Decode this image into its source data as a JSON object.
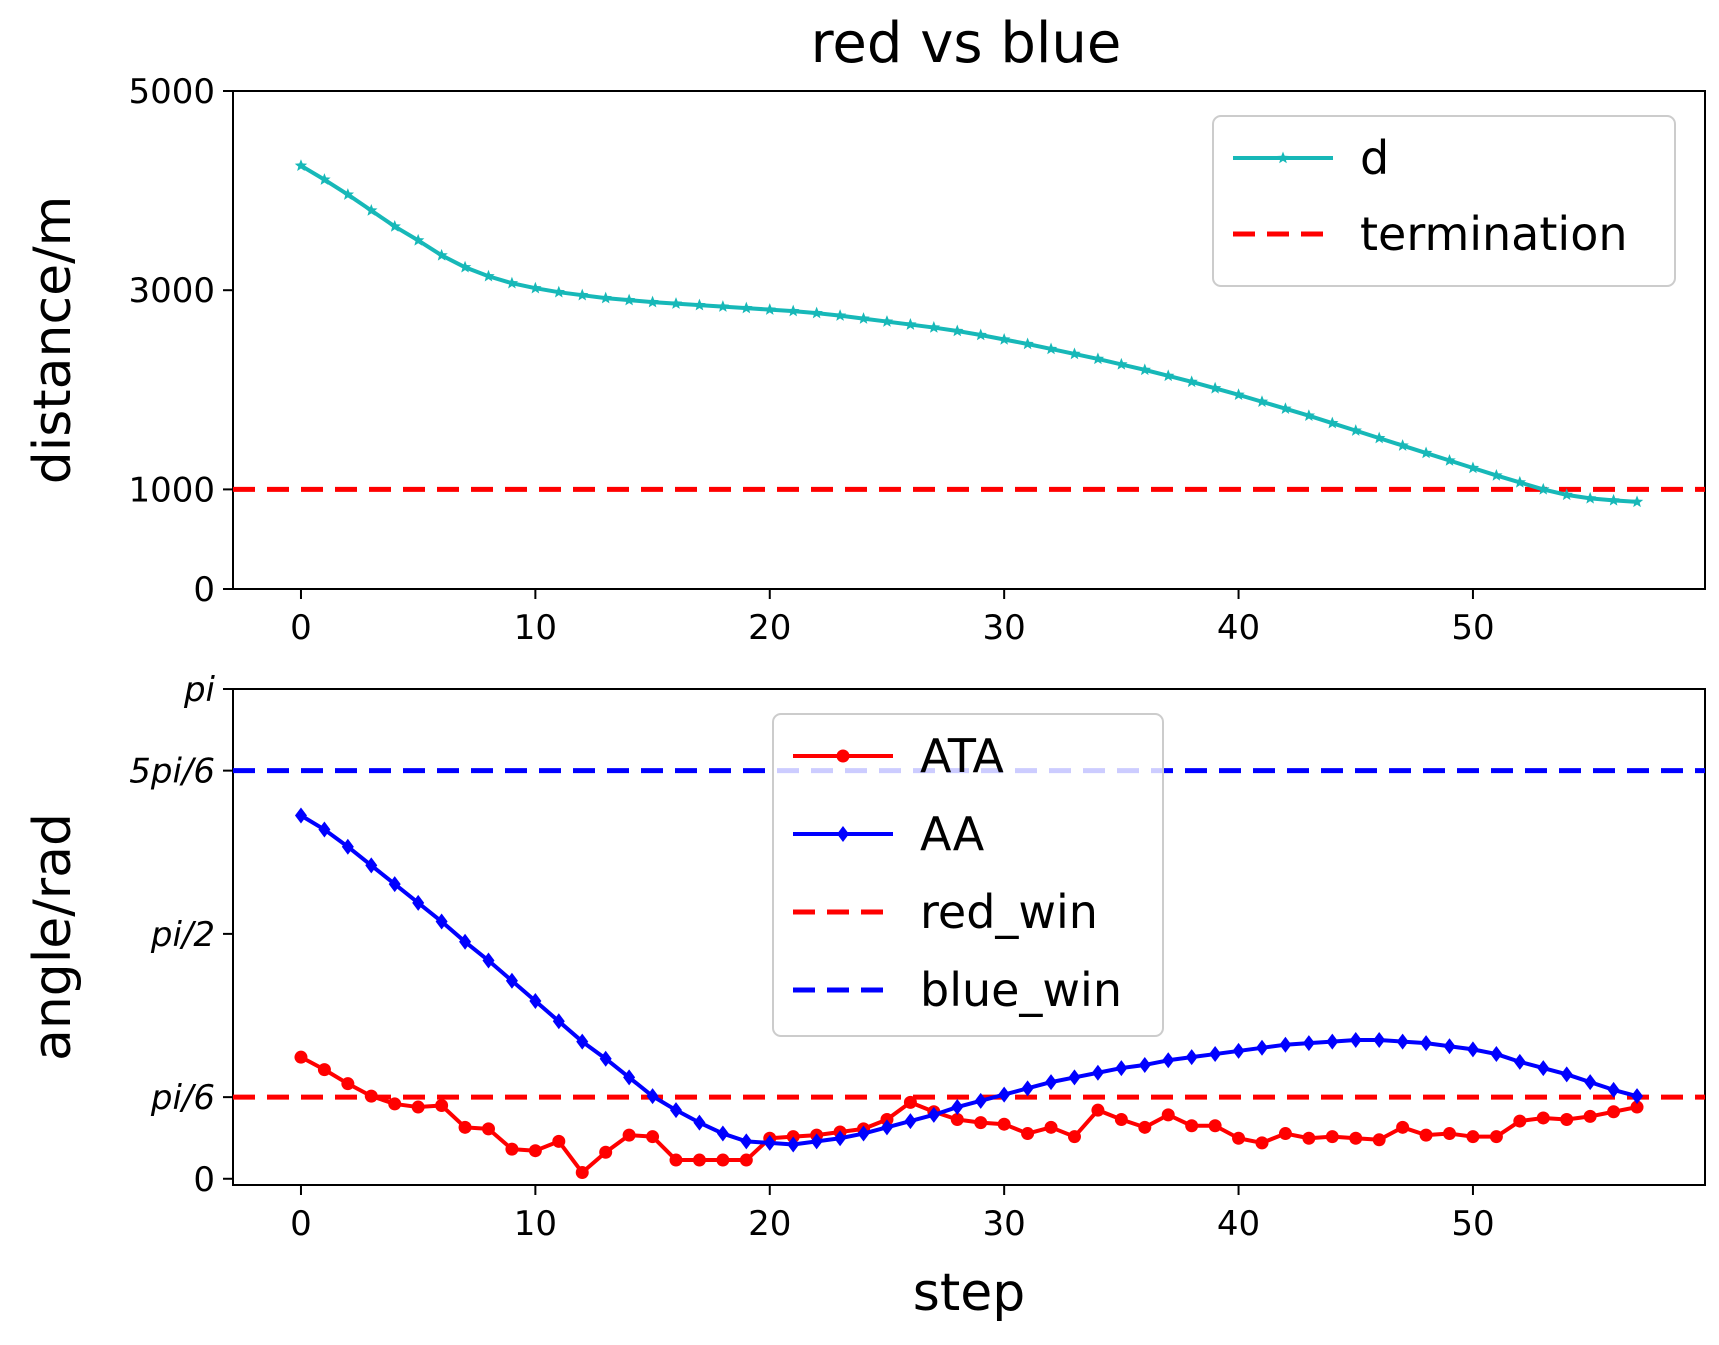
{
  "title": "red vs blue",
  "colors": {
    "d": "#17b8b8",
    "termination": "#ff0000",
    "ata": "#ff0000",
    "aa": "#0000ff",
    "red_win": "#ff0000",
    "blue_win": "#0000ff"
  },
  "chart_data": [
    {
      "type": "line",
      "title": "red vs blue",
      "xlabel": "",
      "ylabel": "distance/m",
      "xlim": [
        -2.9,
        59.9
      ],
      "ylim": [
        0,
        5000
      ],
      "xticks": [
        0,
        10,
        20,
        30,
        40,
        50
      ],
      "xtick_labels": [
        "0",
        "10",
        "20",
        "30",
        "40",
        "50"
      ],
      "yticks": [
        0,
        1000,
        3000,
        5000
      ],
      "ytick_labels": [
        "0",
        "1000",
        "3000",
        "5000"
      ],
      "grid": false,
      "legend_position": "upper right",
      "series": [
        {
          "name": "d",
          "color": "#17b8b8",
          "marker": "star",
          "x": [
            0,
            1,
            2,
            3,
            4,
            5,
            6,
            7,
            8,
            9,
            10,
            11,
            12,
            13,
            14,
            15,
            16,
            17,
            18,
            19,
            20,
            21,
            22,
            23,
            24,
            25,
            26,
            27,
            28,
            29,
            30,
            31,
            32,
            33,
            34,
            35,
            36,
            37,
            38,
            39,
            40,
            41,
            42,
            43,
            44,
            45,
            46,
            47,
            48,
            49,
            50,
            51,
            52,
            53,
            54,
            55,
            56,
            57
          ],
          "values": [
            4250,
            4110,
            3960,
            3800,
            3640,
            3500,
            3350,
            3230,
            3140,
            3070,
            3020,
            2980,
            2950,
            2920,
            2900,
            2880,
            2865,
            2850,
            2835,
            2820,
            2805,
            2790,
            2770,
            2745,
            2715,
            2685,
            2655,
            2625,
            2590,
            2550,
            2505,
            2460,
            2410,
            2360,
            2310,
            2255,
            2200,
            2140,
            2080,
            2015,
            1950,
            1880,
            1810,
            1740,
            1665,
            1590,
            1515,
            1440,
            1365,
            1290,
            1215,
            1140,
            1070,
            1000,
            945,
            910,
            890,
            875
          ]
        },
        {
          "name": "termination",
          "color": "#ff0000",
          "style": "dashed",
          "y": 1000
        }
      ]
    },
    {
      "type": "line",
      "xlabel": "step",
      "ylabel": "angle/rad",
      "xlim": [
        -2.9,
        59.9
      ],
      "ylim": [
        -0.04,
        3.1416
      ],
      "xticks": [
        0,
        10,
        20,
        30,
        40,
        50
      ],
      "xtick_labels": [
        "0",
        "10",
        "20",
        "30",
        "40",
        "50"
      ],
      "yticks": [
        0,
        0.5236,
        1.5708,
        2.618,
        3.1416
      ],
      "ytick_labels": [
        "0",
        "pi/6",
        "pi/2",
        "5pi/6",
        "pi"
      ],
      "grid": false,
      "legend_position": "upper center",
      "series": [
        {
          "name": "ATA",
          "color": "#ff0000",
          "marker": "circle",
          "x": [
            0,
            1,
            2,
            3,
            4,
            5,
            6,
            7,
            8,
            9,
            10,
            11,
            12,
            13,
            14,
            15,
            16,
            17,
            18,
            19,
            20,
            21,
            22,
            23,
            24,
            25,
            26,
            27,
            28,
            29,
            30,
            31,
            32,
            33,
            34,
            35,
            36,
            37,
            38,
            39,
            40,
            41,
            42,
            43,
            44,
            45,
            46,
            47,
            48,
            49,
            50,
            51,
            52,
            53,
            54,
            55,
            56,
            57
          ],
          "values": [
            0.78,
            0.7,
            0.61,
            0.53,
            0.48,
            0.46,
            0.47,
            0.33,
            0.32,
            0.19,
            0.18,
            0.24,
            0.04,
            0.17,
            0.28,
            0.27,
            0.12,
            0.12,
            0.12,
            0.12,
            0.26,
            0.27,
            0.28,
            0.3,
            0.32,
            0.38,
            0.49,
            0.43,
            0.38,
            0.36,
            0.35,
            0.29,
            0.33,
            0.27,
            0.44,
            0.38,
            0.33,
            0.41,
            0.34,
            0.34,
            0.26,
            0.23,
            0.29,
            0.26,
            0.27,
            0.26,
            0.25,
            0.33,
            0.28,
            0.29,
            0.27,
            0.27,
            0.37,
            0.39,
            0.38,
            0.4,
            0.43,
            0.46
          ]
        },
        {
          "name": "AA",
          "color": "#0000ff",
          "marker": "diamond",
          "x": [
            0,
            1,
            2,
            3,
            4,
            5,
            6,
            7,
            8,
            9,
            10,
            11,
            12,
            13,
            14,
            15,
            16,
            17,
            18,
            19,
            20,
            21,
            22,
            23,
            24,
            25,
            26,
            27,
            28,
            29,
            30,
            31,
            32,
            33,
            34,
            35,
            36,
            37,
            38,
            39,
            40,
            41,
            42,
            43,
            44,
            45,
            46,
            47,
            48,
            49,
            50,
            51,
            52,
            53,
            54,
            55,
            56,
            57
          ],
          "values": [
            2.33,
            2.24,
            2.13,
            2.01,
            1.89,
            1.77,
            1.65,
            1.52,
            1.4,
            1.27,
            1.14,
            1.01,
            0.88,
            0.77,
            0.65,
            0.53,
            0.44,
            0.36,
            0.29,
            0.24,
            0.23,
            0.22,
            0.24,
            0.26,
            0.29,
            0.33,
            0.37,
            0.41,
            0.46,
            0.5,
            0.54,
            0.58,
            0.62,
            0.65,
            0.68,
            0.71,
            0.73,
            0.76,
            0.78,
            0.8,
            0.82,
            0.84,
            0.86,
            0.87,
            0.88,
            0.89,
            0.89,
            0.88,
            0.87,
            0.85,
            0.83,
            0.8,
            0.75,
            0.71,
            0.67,
            0.62,
            0.57,
            0.53
          ]
        },
        {
          "name": "red_win",
          "color": "#ff0000",
          "style": "dashed",
          "y": 0.5236
        },
        {
          "name": "blue_win",
          "color": "#0000ff",
          "style": "dashed",
          "y": 2.618
        }
      ]
    }
  ]
}
